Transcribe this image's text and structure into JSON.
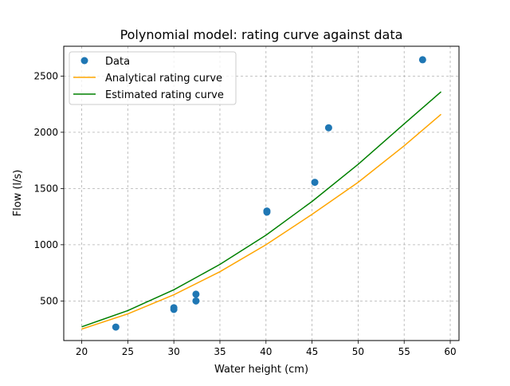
{
  "chart_data": {
    "type": "scatter",
    "title": "Polynomial model: rating curve against data",
    "xlabel": "Water height (cm)",
    "ylabel": "Flow (l/s)",
    "xlim": [
      18.05,
      60.95
    ],
    "ylim": [
      148,
      2765
    ],
    "xticks": [
      20,
      25,
      30,
      35,
      40,
      45,
      50,
      55,
      60
    ],
    "yticks": [
      500,
      1000,
      1500,
      2000,
      2500
    ],
    "grid": true,
    "legend_position": "top-left",
    "scatter": {
      "name": "Data",
      "color": "#1f77b4",
      "points": [
        {
          "x": 23.7,
          "y": 268
        },
        {
          "x": 30.0,
          "y": 425
        },
        {
          "x": 30.0,
          "y": 440
        },
        {
          "x": 32.4,
          "y": 500
        },
        {
          "x": 32.4,
          "y": 560
        },
        {
          "x": 40.1,
          "y": 1290
        },
        {
          "x": 40.1,
          "y": 1300
        },
        {
          "x": 45.3,
          "y": 1555
        },
        {
          "x": 46.8,
          "y": 2040
        },
        {
          "x": 57.0,
          "y": 2645
        }
      ]
    },
    "series": [
      {
        "name": "Analytical rating curve",
        "color": "#ffa500",
        "x": [
          20,
          25,
          30,
          35,
          40,
          45,
          50,
          55,
          59
        ],
        "y": [
          250,
          385,
          555,
          760,
          1000,
          1270,
          1555,
          1880,
          2160
        ]
      },
      {
        "name": "Estimated rating curve",
        "color": "#008000",
        "x": [
          20,
          25,
          30,
          35,
          40,
          45,
          50,
          55,
          59
        ],
        "y": [
          270,
          415,
          600,
          825,
          1085,
          1385,
          1715,
          2075,
          2360
        ]
      }
    ]
  }
}
